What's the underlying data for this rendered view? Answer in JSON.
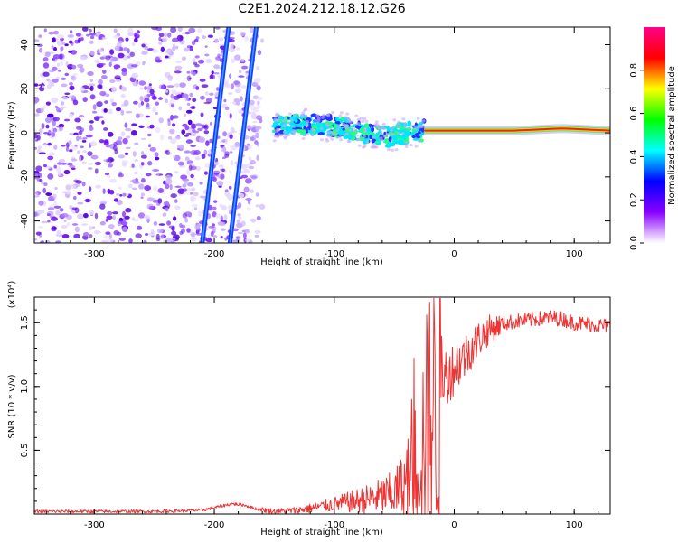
{
  "figure": {
    "title": "C2E1.2024.212.18.12.G26"
  },
  "chart_data": [
    {
      "type": "heatmap",
      "xlabel": "Height of straight line (km)",
      "ylabel": "Frequency (Hz)",
      "xlim": [
        -350,
        130
      ],
      "ylim": [
        -50,
        48
      ],
      "xticks": [
        -300,
        -200,
        -100,
        0,
        100
      ],
      "yticks": [
        -40,
        -20,
        0,
        20,
        40
      ],
      "colorbar": {
        "label": "Normalized spectral amplitude",
        "range": [
          0,
          1
        ],
        "ticks": [
          "0.0",
          "0.2",
          "0.4",
          "0.6",
          "0.8"
        ],
        "colors": [
          "#ffffff",
          "#8800ff",
          "#0000ff",
          "#00ffff",
          "#00ff00",
          "#ffff00",
          "#ff0000",
          "#ff0088"
        ]
      },
      "features": {
        "noise_region_x": [
          -350,
          -160
        ],
        "oblique_streaks": [
          {
            "x_at_bottom": -210,
            "x_at_top": -188
          },
          {
            "x_at_bottom": -187,
            "x_at_top": -165
          }
        ],
        "signal_band": [
          {
            "x": -150,
            "freq": 3
          },
          {
            "x": -120,
            "freq": 4
          },
          {
            "x": -100,
            "freq": 3
          },
          {
            "x": -80,
            "freq": 1
          },
          {
            "x": -60,
            "freq": -2
          },
          {
            "x": -40,
            "freq": 0
          },
          {
            "x": -25,
            "freq": 1
          },
          {
            "x": 0,
            "freq": 1
          },
          {
            "x": 50,
            "freq": 1
          },
          {
            "x": 90,
            "freq": 2
          },
          {
            "x": 130,
            "freq": 1
          }
        ]
      }
    },
    {
      "type": "line",
      "xlabel": "Height of straight line (km)",
      "ylabel": "SNR (10 * v/v)",
      "yscale_label": "(x10⁴)",
      "xlim": [
        -350,
        130
      ],
      "ylim": [
        0,
        1.7
      ],
      "xticks": [
        -300,
        -200,
        -100,
        0,
        100
      ],
      "yticks": [
        "0.5",
        "1.0",
        "1.5"
      ],
      "color": "#ee3333",
      "series": [
        {
          "x": [
            -350,
            -300,
            -250,
            -210,
            -195,
            -185,
            -175,
            -165,
            -150,
            -130,
            -110,
            -90,
            -70,
            -50,
            -40,
            -30,
            -20,
            -10,
            0,
            10,
            20,
            30,
            40,
            50,
            60,
            70,
            80,
            90,
            100,
            110,
            120,
            130
          ],
          "y": [
            0.02,
            0.02,
            0.02,
            0.03,
            0.06,
            0.08,
            0.07,
            0.04,
            0.02,
            0.03,
            0.06,
            0.09,
            0.12,
            0.16,
            0.25,
            0.45,
            0.8,
            1.05,
            1.15,
            1.25,
            1.37,
            1.45,
            1.49,
            1.51,
            1.52,
            1.53,
            1.54,
            1.53,
            1.5,
            1.49,
            1.48,
            1.47
          ]
        }
      ]
    }
  ]
}
